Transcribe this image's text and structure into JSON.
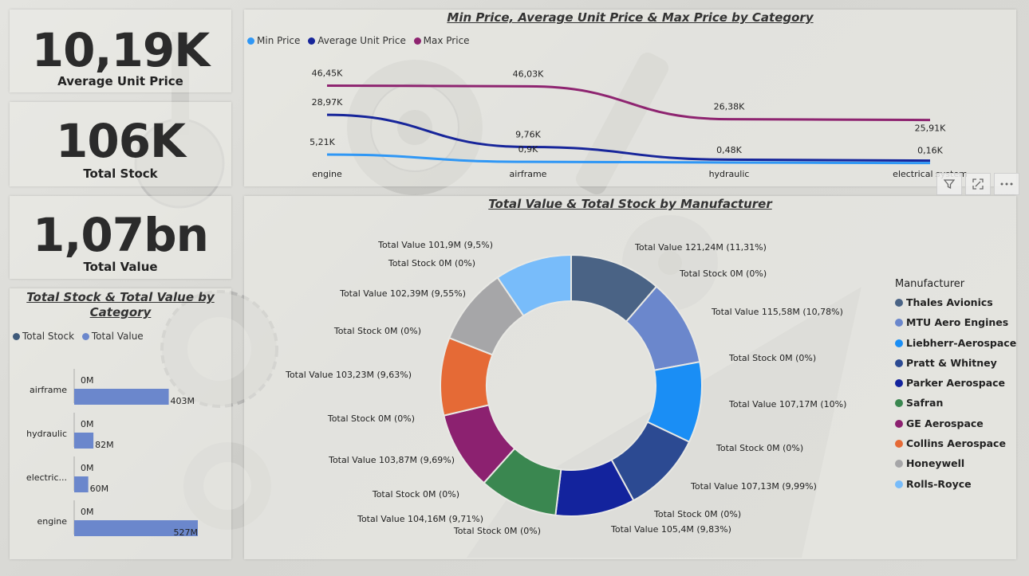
{
  "kpis": {
    "avg_unit_price": {
      "value": "10,19K",
      "label": "Average Unit Price"
    },
    "total_stock": {
      "value": "106K",
      "label": "Total Stock"
    },
    "total_value": {
      "value": "1,07bn",
      "label": "Total Value"
    }
  },
  "price_chart": {
    "title": "Min Price, Average Unit Price & Max Price by Category",
    "legend": [
      {
        "name": "Min Price",
        "color": "#2f97f5"
      },
      {
        "name": "Average Unit Price",
        "color": "#17259a"
      },
      {
        "name": "Max Price",
        "color": "#8e2470"
      }
    ]
  },
  "category_chart": {
    "title_line1": "Total Stock & Total Value by",
    "title_line2": "Category",
    "legend": [
      {
        "name": "Total Stock",
        "color": "#3f5a7a"
      },
      {
        "name": "Total Value",
        "color": "#6b87cc"
      }
    ]
  },
  "manufacturer_chart": {
    "title": "Total Value & Total Stock by Manufacturer",
    "legend_title": "Manufacturer"
  },
  "visual_icons": [
    "filter-icon",
    "focus-mode-icon",
    "more-options-icon"
  ],
  "chart_data": [
    {
      "type": "line",
      "title": "Min Price, Average Unit Price & Max Price by Category",
      "categories": [
        "engine",
        "airframe",
        "hydraulic",
        "electrical system"
      ],
      "series": [
        {
          "name": "Min Price",
          "values": [
            5.21,
            0.9,
            0.48,
            0.16
          ],
          "labels": [
            "5,21K",
            "0,9K",
            "0,48K",
            "0,16K"
          ],
          "color": "#2f97f5"
        },
        {
          "name": "Average Unit Price",
          "values": [
            28.97,
            9.76,
            2.2,
            1.6
          ],
          "labels": [
            "28,97K",
            "9,76K",
            "",
            ""
          ],
          "color": "#17259a"
        },
        {
          "name": "Max Price",
          "values": [
            46.45,
            46.03,
            26.38,
            25.91
          ],
          "labels": [
            "46,45K",
            "46,03K",
            "26,38K",
            "25,91K"
          ],
          "color": "#8e2470"
        }
      ],
      "value_unit": "K",
      "legend": "top-left"
    },
    {
      "type": "bar",
      "orientation": "horizontal",
      "title": "Total Stock & Total Value by Category",
      "categories": [
        "airframe",
        "hydraulic",
        "electric...",
        "engine"
      ],
      "series": [
        {
          "name": "Total Stock",
          "values": [
            0,
            0,
            0,
            0
          ],
          "labels": [
            "0M",
            "0M",
            "0M",
            "0M"
          ],
          "color": "#3f5a7a"
        },
        {
          "name": "Total Value",
          "values": [
            403,
            82,
            60,
            527
          ],
          "labels": [
            "403M",
            "82M",
            "60M",
            "527M"
          ],
          "color": "#6b87cc"
        }
      ],
      "value_unit": "M",
      "legend": "top-left"
    },
    {
      "type": "pie",
      "variant": "donut",
      "title": "Total Value & Total Stock by Manufacturer",
      "legend": "right",
      "slices": [
        {
          "name": "Thales Avionics",
          "value": 121.24,
          "color": "#4a6385",
          "label": "Total Value 121,24M (11,31%)",
          "stock_label": "Total Stock 0M (0%)"
        },
        {
          "name": "MTU Aero Engines",
          "value": 115.58,
          "color": "#6b87cc",
          "label": "Total Value 115,58M (10,78%)",
          "stock_label": "Total Stock 0M (0%)"
        },
        {
          "name": "Liebherr-Aerospace",
          "value": 107.17,
          "color": "#1a8ef5",
          "label": "Total Value 107,17M (10%)",
          "stock_label": "Total Stock 0M (0%)"
        },
        {
          "name": "Pratt & Whitney",
          "value": 107.13,
          "color": "#2c4a92",
          "label": "Total Value 107,13M (9,99%)",
          "stock_label": "Total Stock 0M (0%)"
        },
        {
          "name": "Parker Aerospace",
          "value": 105.4,
          "color": "#13239d",
          "label": "Total Value 105,4M (9,83%)",
          "stock_label": "Total Stock 0M (0%)"
        },
        {
          "name": "Safran",
          "value": 104.16,
          "color": "#3a8750",
          "label": "Total Value 104,16M (9,71%)",
          "stock_label": "Total Stock 0M (0%)"
        },
        {
          "name": "GE Aerospace",
          "value": 103.87,
          "color": "#8c2170",
          "label": "Total Value 103,87M (9,69%)",
          "stock_label": "Total Stock 0M (0%)"
        },
        {
          "name": "Collins Aerospace",
          "value": 103.23,
          "color": "#e56a36",
          "label": "Total Value 103,23M (9,63%)",
          "stock_label": "Total Stock 0M (0%)"
        },
        {
          "name": "Honeywell",
          "value": 102.39,
          "color": "#a6a6a8",
          "label": "Total Value 102,39M (9,55%)",
          "stock_label": "Total Stock 0M (0%)"
        },
        {
          "name": "Rolls-Royce",
          "value": 101.9,
          "color": "#78bcfa",
          "label": "Total Value 101,9M (9,5%)",
          "stock_label": "Total Stock 0M (0%)"
        }
      ]
    }
  ]
}
